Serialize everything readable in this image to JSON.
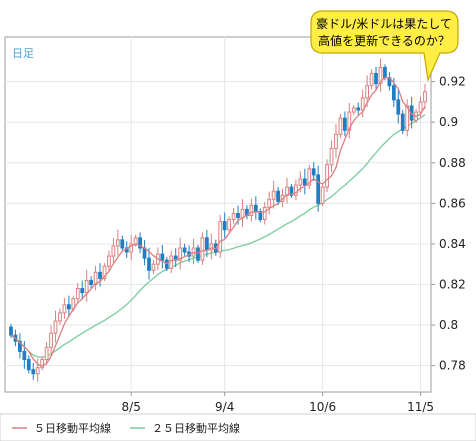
{
  "chart_data": {
    "type": "candlestick",
    "period_label": "日足",
    "callout": {
      "lines": [
        "豪ドル/米ドルは果たして",
        "高値を更新できるのか？"
      ],
      "fill": "#ffee44",
      "stroke": "#c8a800"
    },
    "y_axis": {
      "ylim": [
        0.767,
        0.942
      ],
      "ticks": [
        0.78,
        0.8,
        0.82,
        0.84,
        0.86,
        0.88,
        0.9,
        0.92
      ],
      "tick_labels": [
        "0.78",
        "0.8",
        "0.82",
        "0.84",
        "0.86",
        "0.88",
        "0.9",
        "0.92"
      ]
    },
    "x_axis": {
      "labels": [
        "8/5",
        "9/4",
        "10/6",
        "11/5"
      ],
      "label_index": [
        27,
        48,
        70,
        92
      ],
      "n_bars": 94
    },
    "legend": [
      {
        "label": "５日移動平均線",
        "color": "#d98080"
      },
      {
        "label": "２５日移動平均線",
        "color": "#7acc9c"
      }
    ],
    "colors": {
      "up": "#d98080",
      "down": "#1f7fc4",
      "grid": "#e6e6e6",
      "axis": "#999999"
    },
    "close": [
      0.795,
      0.792,
      0.787,
      0.783,
      0.778,
      0.776,
      0.779,
      0.783,
      0.789,
      0.796,
      0.802,
      0.806,
      0.81,
      0.808,
      0.813,
      0.818,
      0.816,
      0.822,
      0.82,
      0.826,
      0.823,
      0.829,
      0.834,
      0.839,
      0.842,
      0.838,
      0.836,
      0.84,
      0.843,
      0.838,
      0.833,
      0.827,
      0.83,
      0.835,
      0.832,
      0.828,
      0.834,
      0.832,
      0.838,
      0.836,
      0.834,
      0.838,
      0.832,
      0.843,
      0.837,
      0.84,
      0.836,
      0.851,
      0.847,
      0.852,
      0.855,
      0.853,
      0.857,
      0.854,
      0.859,
      0.856,
      0.852,
      0.858,
      0.862,
      0.866,
      0.861,
      0.864,
      0.868,
      0.864,
      0.869,
      0.872,
      0.869,
      0.877,
      0.874,
      0.86,
      0.868,
      0.879,
      0.887,
      0.894,
      0.902,
      0.896,
      0.905,
      0.907,
      0.906,
      0.912,
      0.918,
      0.924,
      0.919,
      0.927,
      0.922,
      0.918,
      0.911,
      0.904,
      0.896,
      0.908,
      0.901,
      0.905,
      0.91,
      0.915
    ]
  }
}
